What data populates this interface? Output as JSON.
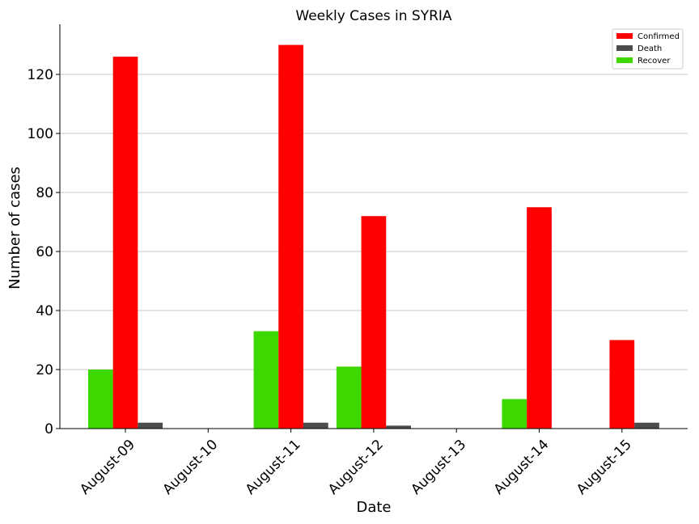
{
  "chart_data": {
    "type": "bar",
    "title": "Weekly Cases in SYRIA",
    "xlabel": "Date",
    "ylabel": "Number of cases",
    "categories": [
      "August-09",
      "August-10",
      "August-11",
      "August-12",
      "August-13",
      "August-14",
      "August-15"
    ],
    "series": [
      {
        "name": "Recover",
        "color": "#3dd800",
        "values": [
          20,
          0,
          33,
          21,
          0,
          10,
          0
        ]
      },
      {
        "name": "Confirmed",
        "color": "#ff0000",
        "values": [
          126,
          0,
          130,
          72,
          0,
          75,
          30
        ]
      },
      {
        "name": "Death",
        "color": "#4c4c4c",
        "values": [
          2,
          0,
          2,
          1,
          0,
          0,
          2
        ]
      }
    ],
    "legend_order": [
      "Confirmed",
      "Death",
      "Recover"
    ],
    "ylim": [
      0,
      137
    ],
    "yticks": [
      0,
      20,
      40,
      60,
      80,
      100,
      120
    ],
    "grid": "horizontal",
    "legend_position": "top-right"
  }
}
